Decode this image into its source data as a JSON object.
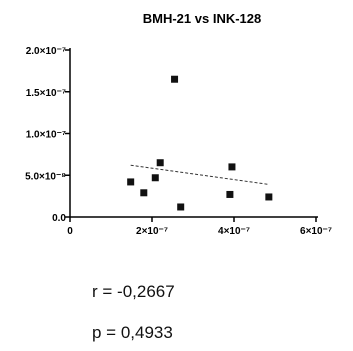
{
  "chart_data": {
    "type": "scatter",
    "title": "BMH-21 vs INK-128",
    "xlabel": "",
    "ylabel": "",
    "xlim": [
      0,
      6e-07
    ],
    "ylim": [
      0,
      2e-07
    ],
    "x_ticks": [
      {
        "value": 0,
        "label": "0"
      },
      {
        "value": 2e-07,
        "label": "2×10⁻⁷"
      },
      {
        "value": 4e-07,
        "label": "4×10⁻⁷"
      },
      {
        "value": 6e-07,
        "label": "6×10⁻⁷"
      }
    ],
    "y_ticks": [
      {
        "value": 0,
        "label": "0.0"
      },
      {
        "value": 5e-08,
        "label": "5.0×10⁻⁸"
      },
      {
        "value": 1e-07,
        "label": "1.0×10⁻⁷"
      },
      {
        "value": 1.5e-07,
        "label": "1.5×10⁻⁷"
      },
      {
        "value": 2e-07,
        "label": "2.0×10⁻⁷"
      }
    ],
    "points": [
      {
        "x": 1.48e-07,
        "y": 4.2e-08
      },
      {
        "x": 1.8e-07,
        "y": 2.9e-08
      },
      {
        "x": 2.08e-07,
        "y": 4.7e-08
      },
      {
        "x": 2.2e-07,
        "y": 6.5e-08
      },
      {
        "x": 2.55e-07,
        "y": 1.65e-07
      },
      {
        "x": 2.7e-07,
        "y": 1.2e-08
      },
      {
        "x": 3.9e-07,
        "y": 2.7e-08
      },
      {
        "x": 3.95e-07,
        "y": 6e-08
      },
      {
        "x": 4.85e-07,
        "y": 2.4e-08
      }
    ],
    "trendline": {
      "x": [
        1.48e-07,
        4.85e-07
      ],
      "y": [
        6.2e-08,
        3.9e-08
      ],
      "style": "dashed"
    },
    "grid": false,
    "legend": "none"
  },
  "stats": {
    "r": "r = -0,2667",
    "p": "p = 0,4933"
  },
  "colors": {
    "marker": "#111111",
    "axis": "#000000",
    "trend": "#333333"
  }
}
